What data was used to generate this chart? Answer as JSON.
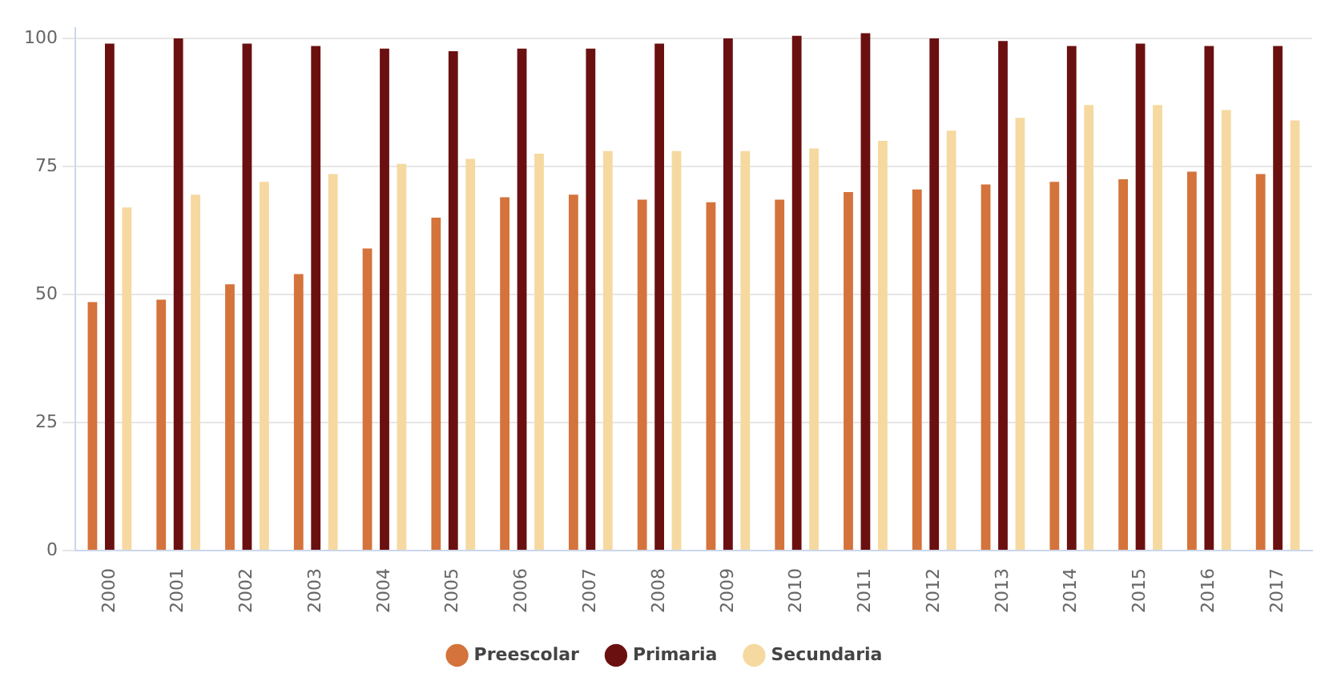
{
  "chart_data": {
    "type": "bar",
    "categories": [
      "2000",
      "2001",
      "2002",
      "2003",
      "2004",
      "2005",
      "2006",
      "2007",
      "2008",
      "2009",
      "2010",
      "2011",
      "2012",
      "2013",
      "2014",
      "2015",
      "2016",
      "2017"
    ],
    "series": [
      {
        "name": "Preescolar",
        "color": "#d4733b",
        "values": [
          48.5,
          49,
          52,
          54,
          59,
          65,
          69,
          69.5,
          68.5,
          68,
          68.5,
          70,
          70.5,
          71.5,
          72,
          72.5,
          74,
          73.5
        ]
      },
      {
        "name": "Primaria",
        "color": "#6b1010",
        "values": [
          99,
          100,
          99,
          98.5,
          98,
          97.5,
          98,
          98,
          99,
          100,
          100.5,
          101,
          100,
          99.5,
          98.5,
          99,
          98.5,
          98.5
        ]
      },
      {
        "name": "Secundaria",
        "color": "#f5d9a0",
        "values": [
          67,
          69.5,
          72,
          73.5,
          75.5,
          76.5,
          77.5,
          78,
          78,
          78,
          78.5,
          80,
          82,
          84.5,
          87,
          87,
          86,
          84
        ]
      }
    ],
    "ylim": [
      0,
      102
    ],
    "yticks": [
      0,
      25,
      50,
      75,
      100
    ],
    "grid": "y",
    "legend": "bottom"
  }
}
